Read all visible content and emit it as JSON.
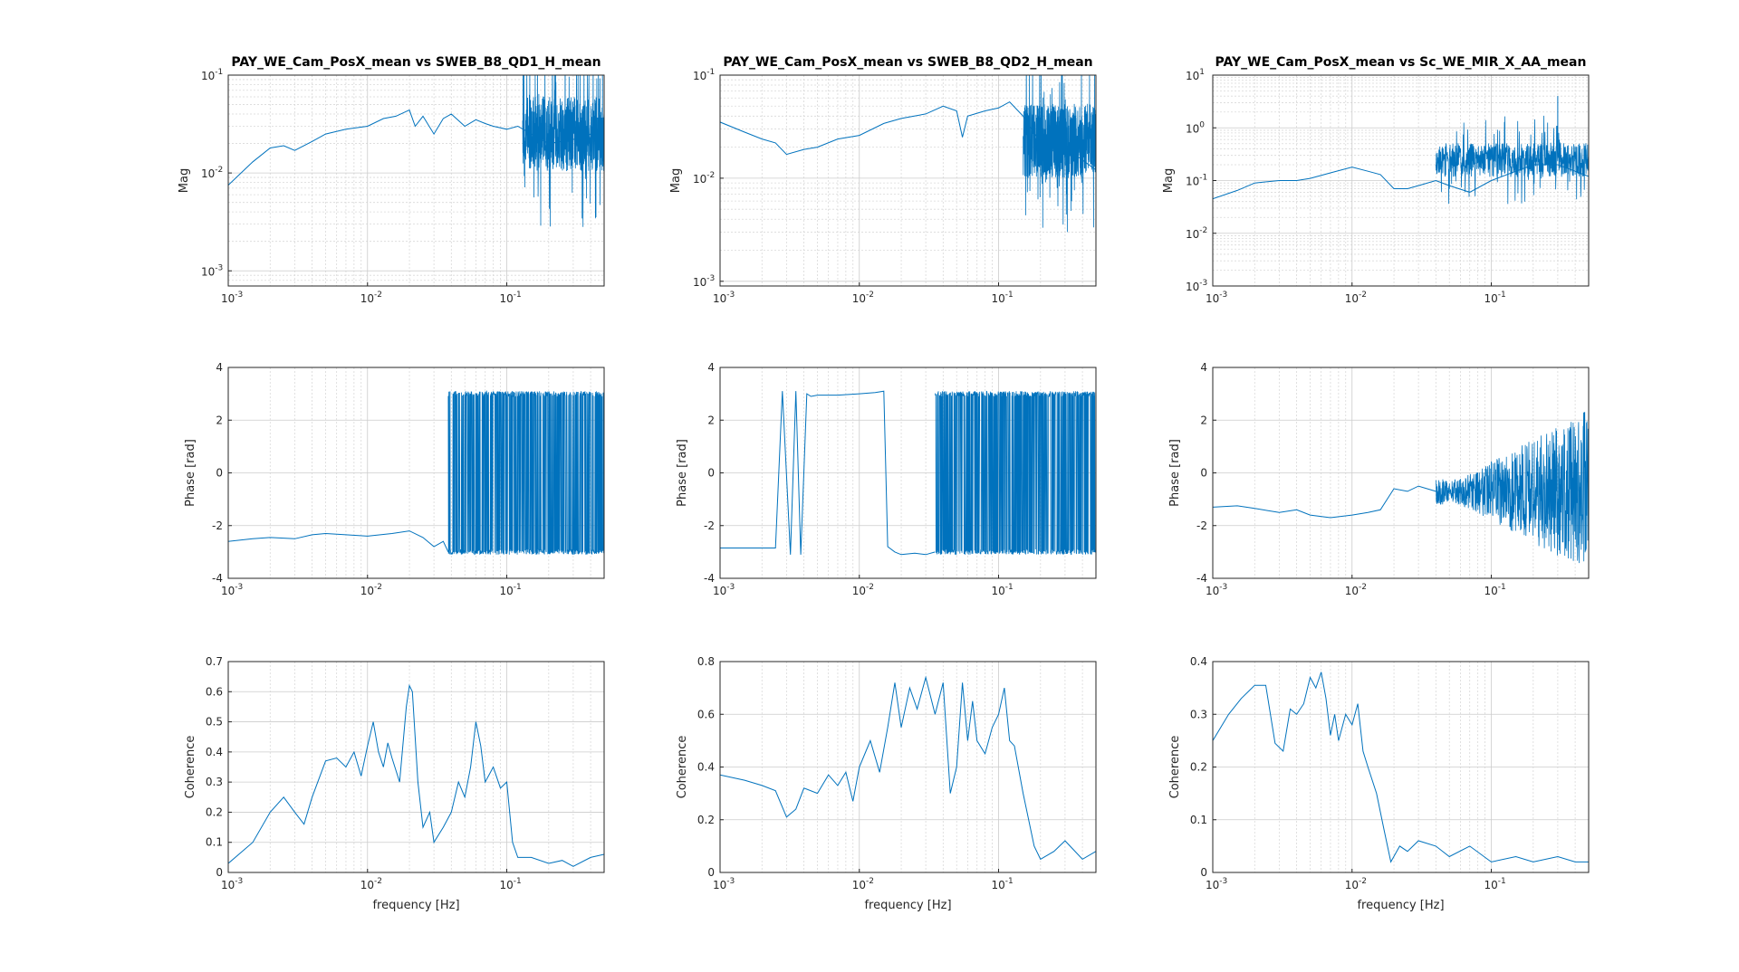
{
  "figure": {
    "columns": [
      {
        "title": "PAY_WE_Cam_PosX_mean vs SWEB_B8_QD1_H_mean"
      },
      {
        "title": "PAY_WE_Cam_PosX_mean vs SWEB_B8_QD2_H_mean"
      },
      {
        "title": "PAY_WE_Cam_PosX_mean vs Sc_WE_MIR_X_AA_mean"
      }
    ],
    "line_color": "#0072BD",
    "grid_color": "#d9d9d9"
  },
  "chart_data": [
    {
      "type": "line",
      "row": "magnitude",
      "column": 1,
      "title": "PAY_WE_Cam_PosX_mean vs SWEB_B8_QD1_H_mean",
      "xlabel": "",
      "ylabel": "Mag",
      "xscale": "log",
      "yscale": "log",
      "xlim": [
        0.001,
        0.5
      ],
      "ylim": [
        0.0007,
        0.1
      ],
      "xticks": [
        0.001,
        0.01,
        0.1
      ],
      "xticklabels": [
        [
          "10",
          "-3"
        ],
        [
          "10",
          "-2"
        ],
        [
          "10",
          "-1"
        ]
      ],
      "yticks": [
        0.001,
        0.01,
        0.1
      ],
      "yticklabels": [
        [
          "10",
          "-3"
        ],
        [
          "10",
          "-2"
        ],
        [
          "10",
          "-1"
        ]
      ],
      "grid": true,
      "series": [
        {
          "x": [
            0.001,
            0.0015,
            0.002,
            0.0025,
            0.003,
            0.004,
            0.005,
            0.007,
            0.01,
            0.013,
            0.016,
            0.02,
            0.022,
            0.025,
            0.03,
            0.035,
            0.04,
            0.05,
            0.06,
            0.07,
            0.08,
            0.1,
            0.12,
            0.15,
            0.2,
            0.3,
            0.4,
            0.5
          ],
          "y": [
            0.0075,
            0.013,
            0.018,
            0.019,
            0.017,
            0.021,
            0.025,
            0.028,
            0.03,
            0.036,
            0.038,
            0.044,
            0.03,
            0.038,
            0.025,
            0.036,
            0.04,
            0.03,
            0.035,
            0.032,
            0.03,
            0.028,
            0.03,
            0.025,
            0.02,
            0.022,
            0.025,
            0.02
          ]
        }
      ],
      "noise_band": {
        "x": [
          0.13,
          0.5
        ],
        "y_low": 0.0009,
        "y_high": 0.045
      }
    },
    {
      "type": "line",
      "row": "magnitude",
      "column": 2,
      "title": "PAY_WE_Cam_PosX_mean vs SWEB_B8_QD2_H_mean",
      "xlabel": "",
      "ylabel": "Mag",
      "xscale": "log",
      "yscale": "log",
      "xlim": [
        0.001,
        0.5
      ],
      "ylim": [
        0.0009,
        0.1
      ],
      "xticks": [
        0.001,
        0.01,
        0.1
      ],
      "xticklabels": [
        [
          "10",
          "-3"
        ],
        [
          "10",
          "-2"
        ],
        [
          "10",
          "-1"
        ]
      ],
      "yticks": [
        0.001,
        0.01,
        0.1
      ],
      "yticklabels": [
        [
          "10",
          "-3"
        ],
        [
          "10",
          "-2"
        ],
        [
          "10",
          "-1"
        ]
      ],
      "grid": true,
      "series": [
        {
          "x": [
            0.001,
            0.0015,
            0.002,
            0.0025,
            0.003,
            0.004,
            0.005,
            0.007,
            0.01,
            0.015,
            0.02,
            0.03,
            0.04,
            0.05,
            0.055,
            0.06,
            0.08,
            0.1,
            0.12,
            0.15,
            0.2,
            0.3,
            0.4,
            0.5
          ],
          "y": [
            0.035,
            0.028,
            0.024,
            0.022,
            0.017,
            0.019,
            0.02,
            0.024,
            0.026,
            0.034,
            0.038,
            0.042,
            0.05,
            0.045,
            0.025,
            0.04,
            0.045,
            0.048,
            0.055,
            0.04,
            0.022,
            0.02,
            0.015,
            0.012
          ]
        }
      ],
      "noise_band": {
        "x": [
          0.15,
          0.5
        ],
        "y_low": 0.001,
        "y_high": 0.04
      }
    },
    {
      "type": "line",
      "row": "magnitude",
      "column": 3,
      "title": "PAY_WE_Cam_PosX_mean vs Sc_WE_MIR_X_AA_mean",
      "xlabel": "",
      "ylabel": "Mag",
      "xscale": "log",
      "yscale": "log",
      "xlim": [
        0.001,
        0.5
      ],
      "ylim": [
        0.001,
        10
      ],
      "xticks": [
        0.001,
        0.01,
        0.1
      ],
      "xticklabels": [
        [
          "10",
          "-3"
        ],
        [
          "10",
          "-2"
        ],
        [
          "10",
          "-1"
        ]
      ],
      "yticks": [
        0.001,
        0.01,
        0.1,
        1,
        10
      ],
      "yticklabels": [
        [
          "10",
          "-3"
        ],
        [
          "10",
          "-2"
        ],
        [
          "10",
          "-1"
        ],
        [
          "10",
          "0"
        ],
        [
          "10",
          "1"
        ]
      ],
      "grid": true,
      "series": [
        {
          "x": [
            0.001,
            0.0015,
            0.002,
            0.003,
            0.004,
            0.005,
            0.007,
            0.01,
            0.013,
            0.016,
            0.02,
            0.025,
            0.03,
            0.04,
            0.05,
            0.07,
            0.1,
            0.15,
            0.2,
            0.3,
            0.4,
            0.5
          ],
          "y": [
            0.045,
            0.065,
            0.09,
            0.1,
            0.1,
            0.11,
            0.14,
            0.18,
            0.15,
            0.13,
            0.07,
            0.07,
            0.08,
            0.1,
            0.08,
            0.06,
            0.1,
            0.15,
            0.2,
            0.2,
            0.15,
            0.12
          ]
        }
      ],
      "noise_band": {
        "x": [
          0.04,
          0.5
        ],
        "y_low": 0.015,
        "y_high": 0.4
      },
      "spikes": [
        {
          "x": 0.3,
          "y": 4
        }
      ]
    },
    {
      "type": "line",
      "row": "phase",
      "column": 1,
      "xlabel": "",
      "ylabel": "Phase [rad]",
      "xscale": "log",
      "yscale": "linear",
      "xlim": [
        0.001,
        0.5
      ],
      "ylim": [
        -4,
        4
      ],
      "xticks": [
        0.001,
        0.01,
        0.1
      ],
      "xticklabels": [
        [
          "10",
          "-3"
        ],
        [
          "10",
          "-2"
        ],
        [
          "10",
          "-1"
        ]
      ],
      "yticks": [
        -4,
        -2,
        0,
        2,
        4
      ],
      "yticklabels": [
        "-4",
        "-2",
        "0",
        "2",
        "4"
      ],
      "grid": true,
      "series": [
        {
          "x": [
            0.001,
            0.0015,
            0.002,
            0.003,
            0.004,
            0.005,
            0.007,
            0.01,
            0.015,
            0.02,
            0.025,
            0.03,
            0.035,
            0.038
          ],
          "y": [
            -2.6,
            -2.5,
            -2.45,
            -2.5,
            -2.35,
            -2.3,
            -2.35,
            -2.4,
            -2.3,
            -2.2,
            -2.45,
            -2.8,
            -2.6,
            -3.0
          ]
        }
      ],
      "noise_band": {
        "x": [
          0.038,
          0.5
        ],
        "y_low": -3.1,
        "y_high": 3.1,
        "type": "wrap"
      }
    },
    {
      "type": "line",
      "row": "phase",
      "column": 2,
      "xlabel": "",
      "ylabel": "Phase [rad]",
      "xscale": "log",
      "yscale": "linear",
      "xlim": [
        0.001,
        0.5
      ],
      "ylim": [
        -4,
        4
      ],
      "xticks": [
        0.001,
        0.01,
        0.1
      ],
      "xticklabels": [
        [
          "10",
          "-3"
        ],
        [
          "10",
          "-2"
        ],
        [
          "10",
          "-1"
        ]
      ],
      "yticks": [
        -4,
        -2,
        0,
        2,
        4
      ],
      "yticklabels": [
        "-4",
        "-2",
        "0",
        "2",
        "4"
      ],
      "grid": true,
      "series": [
        {
          "x": [
            0.001,
            0.002,
            0.0025,
            0.0028,
            0.0032,
            0.0035,
            0.0038,
            0.0042,
            0.0045,
            0.005,
            0.007,
            0.01,
            0.013,
            0.015,
            0.016,
            0.018,
            0.02,
            0.025,
            0.03,
            0.035
          ],
          "y": [
            -2.85,
            -2.85,
            -2.85,
            3.1,
            -3.1,
            3.1,
            -3.1,
            3.0,
            2.9,
            2.95,
            2.95,
            3.0,
            3.05,
            3.1,
            -2.8,
            -3.0,
            -3.1,
            -3.05,
            -3.1,
            -3.0
          ]
        }
      ],
      "noise_band": {
        "x": [
          0.035,
          0.5
        ],
        "y_low": -3.1,
        "y_high": 3.1,
        "type": "wrap"
      }
    },
    {
      "type": "line",
      "row": "phase",
      "column": 3,
      "xlabel": "",
      "ylabel": "Phase [rad]",
      "xscale": "log",
      "yscale": "linear",
      "xlim": [
        0.001,
        0.5
      ],
      "ylim": [
        -4,
        4
      ],
      "xticks": [
        0.001,
        0.01,
        0.1
      ],
      "xticklabels": [
        [
          "10",
          "-3"
        ],
        [
          "10",
          "-2"
        ],
        [
          "10",
          "-1"
        ]
      ],
      "yticks": [
        -4,
        -2,
        0,
        2,
        4
      ],
      "yticklabels": [
        "-4",
        "-2",
        "0",
        "2",
        "4"
      ],
      "grid": true,
      "series": [
        {
          "x": [
            0.001,
            0.0015,
            0.002,
            0.003,
            0.004,
            0.005,
            0.007,
            0.01,
            0.013,
            0.016,
            0.02,
            0.025,
            0.03,
            0.04
          ],
          "y": [
            -1.3,
            -1.25,
            -1.35,
            -1.5,
            -1.4,
            -1.6,
            -1.7,
            -1.6,
            -1.5,
            -1.4,
            -0.6,
            -0.7,
            -0.5,
            -0.7
          ]
        }
      ],
      "noise_band": {
        "x": [
          0.04,
          0.5
        ],
        "y_low": -3.1,
        "y_high": 3.1,
        "type": "growing"
      }
    },
    {
      "type": "line",
      "row": "coherence",
      "column": 1,
      "xlabel": "frequency [Hz]",
      "ylabel": "Coherence",
      "xscale": "log",
      "yscale": "linear",
      "xlim": [
        0.001,
        0.5
      ],
      "ylim": [
        0,
        0.7
      ],
      "xticks": [
        0.001,
        0.01,
        0.1
      ],
      "xticklabels": [
        [
          "10",
          "-3"
        ],
        [
          "10",
          "-2"
        ],
        [
          "10",
          "-1"
        ]
      ],
      "yticks": [
        0,
        0.1,
        0.2,
        0.3,
        0.4,
        0.5,
        0.6,
        0.7
      ],
      "yticklabels": [
        "0",
        "0.1",
        "0.2",
        "0.3",
        "0.4",
        "0.5",
        "0.6",
        "0.7"
      ],
      "grid": true,
      "series": [
        {
          "x": [
            0.001,
            0.0015,
            0.002,
            0.0025,
            0.003,
            0.0035,
            0.004,
            0.005,
            0.006,
            0.007,
            0.008,
            0.009,
            0.01,
            0.011,
            0.012,
            0.013,
            0.014,
            0.015,
            0.017,
            0.019,
            0.02,
            0.021,
            0.023,
            0.025,
            0.028,
            0.03,
            0.035,
            0.04,
            0.045,
            0.05,
            0.055,
            0.06,
            0.065,
            0.07,
            0.08,
            0.09,
            0.1,
            0.11,
            0.12,
            0.15,
            0.2,
            0.25,
            0.3,
            0.4,
            0.5
          ],
          "y": [
            0.03,
            0.1,
            0.2,
            0.25,
            0.2,
            0.16,
            0.25,
            0.37,
            0.38,
            0.35,
            0.4,
            0.32,
            0.42,
            0.5,
            0.4,
            0.35,
            0.43,
            0.38,
            0.3,
            0.55,
            0.62,
            0.6,
            0.3,
            0.15,
            0.2,
            0.1,
            0.15,
            0.2,
            0.3,
            0.25,
            0.35,
            0.5,
            0.42,
            0.3,
            0.35,
            0.28,
            0.3,
            0.1,
            0.05,
            0.05,
            0.03,
            0.04,
            0.02,
            0.05,
            0.06
          ]
        }
      ]
    },
    {
      "type": "line",
      "row": "coherence",
      "column": 2,
      "xlabel": "frequency [Hz]",
      "ylabel": "Coherence",
      "xscale": "log",
      "yscale": "linear",
      "xlim": [
        0.001,
        0.5
      ],
      "ylim": [
        0,
        0.8
      ],
      "xticks": [
        0.001,
        0.01,
        0.1
      ],
      "xticklabels": [
        [
          "10",
          "-3"
        ],
        [
          "10",
          "-2"
        ],
        [
          "10",
          "-1"
        ]
      ],
      "yticks": [
        0,
        0.2,
        0.4,
        0.6,
        0.8
      ],
      "yticklabels": [
        "0",
        "0.2",
        "0.4",
        "0.6",
        "0.8"
      ],
      "grid": true,
      "series": [
        {
          "x": [
            0.001,
            0.0015,
            0.002,
            0.0025,
            0.003,
            0.0035,
            0.004,
            0.005,
            0.006,
            0.007,
            0.008,
            0.009,
            0.01,
            0.012,
            0.014,
            0.016,
            0.018,
            0.02,
            0.023,
            0.026,
            0.03,
            0.035,
            0.04,
            0.045,
            0.05,
            0.055,
            0.06,
            0.065,
            0.07,
            0.08,
            0.09,
            0.1,
            0.11,
            0.12,
            0.13,
            0.15,
            0.18,
            0.2,
            0.25,
            0.3,
            0.4,
            0.5
          ],
          "y": [
            0.37,
            0.35,
            0.33,
            0.31,
            0.21,
            0.24,
            0.32,
            0.3,
            0.37,
            0.33,
            0.38,
            0.27,
            0.4,
            0.5,
            0.38,
            0.55,
            0.72,
            0.55,
            0.7,
            0.62,
            0.74,
            0.6,
            0.72,
            0.3,
            0.4,
            0.72,
            0.5,
            0.65,
            0.5,
            0.45,
            0.55,
            0.6,
            0.7,
            0.5,
            0.48,
            0.3,
            0.1,
            0.05,
            0.08,
            0.12,
            0.05,
            0.08
          ]
        }
      ]
    },
    {
      "type": "line",
      "row": "coherence",
      "column": 3,
      "xlabel": "frequency [Hz]",
      "ylabel": "Coherence",
      "xscale": "log",
      "yscale": "linear",
      "xlim": [
        0.001,
        0.5
      ],
      "ylim": [
        0,
        0.4
      ],
      "xticks": [
        0.001,
        0.01,
        0.1
      ],
      "xticklabels": [
        [
          "10",
          "-3"
        ],
        [
          "10",
          "-2"
        ],
        [
          "10",
          "-1"
        ]
      ],
      "yticks": [
        0,
        0.1,
        0.2,
        0.3,
        0.4
      ],
      "yticklabels": [
        "0",
        "0.1",
        "0.2",
        "0.3",
        "0.4"
      ],
      "grid": true,
      "series": [
        {
          "x": [
            0.001,
            0.0013,
            0.0016,
            0.002,
            0.0024,
            0.0028,
            0.0032,
            0.0036,
            0.004,
            0.0045,
            0.005,
            0.0055,
            0.006,
            0.0065,
            0.007,
            0.0075,
            0.008,
            0.009,
            0.01,
            0.011,
            0.012,
            0.013,
            0.015,
            0.017,
            0.019,
            0.022,
            0.025,
            0.03,
            0.04,
            0.05,
            0.07,
            0.1,
            0.15,
            0.2,
            0.3,
            0.4,
            0.5
          ],
          "y": [
            0.25,
            0.3,
            0.33,
            0.355,
            0.355,
            0.245,
            0.23,
            0.31,
            0.3,
            0.32,
            0.37,
            0.35,
            0.38,
            0.33,
            0.26,
            0.3,
            0.25,
            0.3,
            0.28,
            0.32,
            0.23,
            0.2,
            0.15,
            0.08,
            0.02,
            0.05,
            0.04,
            0.06,
            0.05,
            0.03,
            0.05,
            0.02,
            0.03,
            0.02,
            0.03,
            0.02,
            0.02
          ]
        }
      ]
    }
  ]
}
